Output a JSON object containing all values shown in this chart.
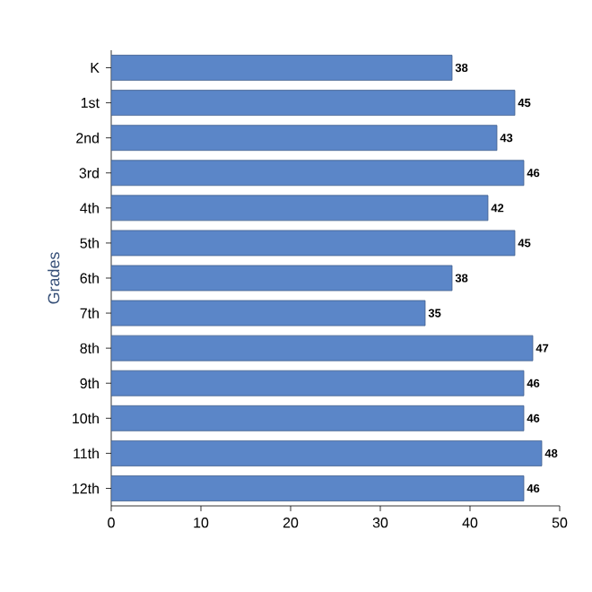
{
  "chart_data": {
    "type": "bar",
    "orientation": "horizontal",
    "ylabel": "Grades",
    "categories": [
      "K",
      "1st",
      "2nd",
      "3rd",
      "4th",
      "5th",
      "6th",
      "7th",
      "8th",
      "9th",
      "10th",
      "11th",
      "12th"
    ],
    "values": [
      38,
      45,
      43,
      46,
      42,
      45,
      38,
      35,
      47,
      46,
      46,
      48,
      46
    ],
    "color": "#5b86c8",
    "data_labels": true,
    "xlim": [
      0,
      50
    ],
    "xticks": [
      0,
      10,
      20,
      30,
      40,
      50
    ],
    "grid": false
  }
}
